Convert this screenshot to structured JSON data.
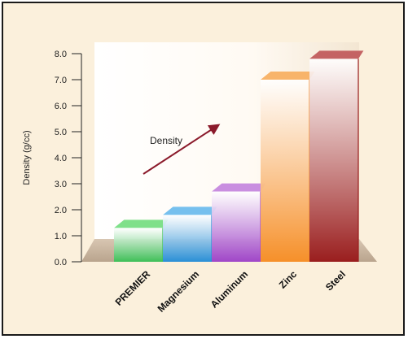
{
  "chart_data": {
    "type": "bar",
    "ylabel": "Density (g/cc)",
    "ylim": [
      0,
      8
    ],
    "y_ticks": [
      "0.0",
      "1.0",
      "2.0",
      "3.0",
      "4.0",
      "5.0",
      "6.0",
      "7.0",
      "8.0"
    ],
    "categories": [
      "PREMIER",
      "Magnesium",
      "Aluminum",
      "Zinc",
      "Steel"
    ],
    "values": [
      1.3,
      1.8,
      2.7,
      7.0,
      7.8
    ],
    "bar_colors": [
      "#3fbf58",
      "#2a8fd6",
      "#a046c8",
      "#f6902a",
      "#9a1e1e"
    ],
    "bar_top_colors": [
      "#7fe08a",
      "#76c0ee",
      "#c98ee0",
      "#f8b46a",
      "#c46363"
    ],
    "annotation": {
      "text": "Density"
    },
    "grid": false,
    "legend": "none"
  },
  "colors": {
    "background": "#fbf0dc",
    "back_wall": "#ffffff",
    "floor": "#c7b49f",
    "arrow": "#8b1a2b"
  }
}
